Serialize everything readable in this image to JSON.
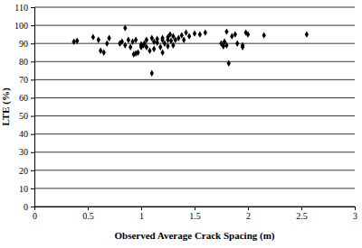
{
  "chart_data": {
    "type": "scatter",
    "x_label": "Observed Average Crack Spacing (m)",
    "y_label": "LTE (%)",
    "x": [
      0.37,
      0.4,
      0.55,
      0.6,
      0.62,
      0.65,
      0.68,
      0.7,
      0.8,
      0.82,
      0.85,
      0.85,
      0.88,
      0.9,
      0.92,
      0.95,
      0.95,
      0.97,
      1.0,
      1.02,
      1.03,
      1.05,
      1.08,
      1.1,
      1.1,
      1.12,
      1.15,
      1.15,
      1.18,
      1.2,
      1.2,
      1.22,
      1.25,
      1.25,
      1.27,
      1.28,
      1.3,
      1.3,
      1.32,
      1.35,
      1.38,
      1.4,
      1.42,
      1.45,
      1.5,
      1.55,
      1.6,
      1.75,
      1.77,
      1.78,
      1.8,
      1.8,
      1.82,
      1.85,
      1.88,
      1.9,
      1.95,
      1.95,
      1.98,
      2.0,
      2.15,
      2.55,
      1.0,
      1.12,
      1.2,
      0.93,
      1.25,
      1.0,
      1.05
    ],
    "y": [
      91,
      91.5,
      93.5,
      92,
      86,
      85,
      90,
      93,
      90,
      91,
      89,
      98.5,
      92,
      88,
      91,
      92,
      84.5,
      85,
      88,
      89,
      90,
      92,
      86,
      73.5,
      93,
      91,
      90.5,
      92.5,
      88,
      93,
      85,
      90,
      93.5,
      92,
      95,
      91.5,
      94,
      89,
      92,
      93,
      94.5,
      92,
      96,
      94,
      95.5,
      95,
      96,
      90,
      88.5,
      91,
      96.5,
      89,
      79,
      94,
      95,
      90,
      89,
      88,
      96,
      95,
      94.5,
      95,
      89.5,
      87,
      92,
      84,
      88.5,
      89,
      88
    ],
    "color": "#000000",
    "marker": "diamond",
    "xlim": [
      0,
      3
    ],
    "xticks": [
      0,
      0.5,
      1,
      1.5,
      2,
      2.5,
      3
    ],
    "ylim": [
      0,
      110
    ],
    "yticks": [
      0,
      10,
      20,
      30,
      40,
      50,
      60,
      70,
      80,
      90,
      100,
      110
    ],
    "grid": true
  }
}
